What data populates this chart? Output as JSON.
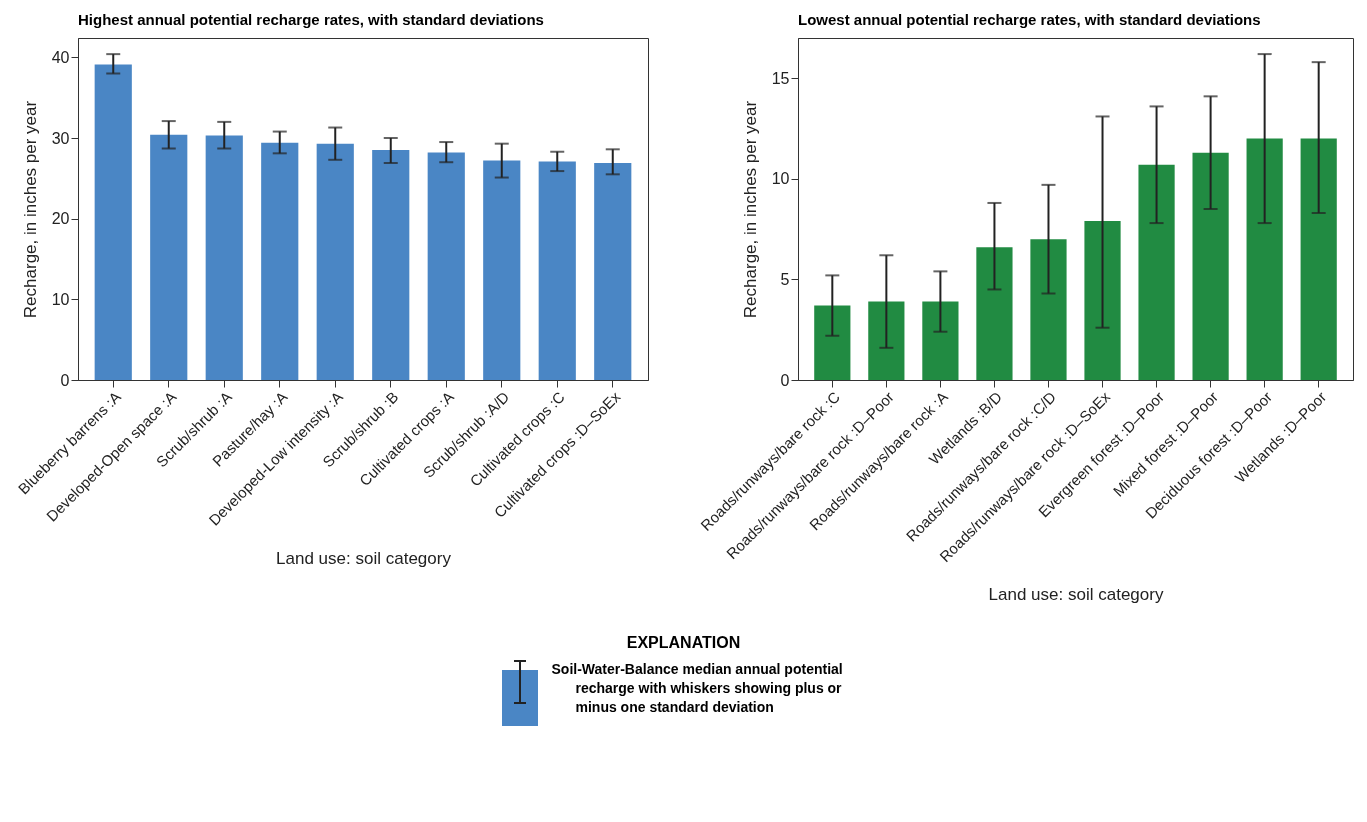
{
  "chart_data": [
    {
      "type": "bar",
      "title": "Highest annual potential recharge rates, with standard deviations",
      "xlabel": "Land use: soil category",
      "ylabel": "Recharge, in inches per year",
      "categories": [
        "Blueberry barrens :A",
        "Developed-Open space :A",
        "Scrub/shrub :A",
        "Pasture/hay :A",
        "Developed-Low intensity :A",
        "Scrub/shrub :B",
        "Cultivated crops :A",
        "Scrub/shrub :A/D",
        "Cultivated crops :C",
        "Cultivated crops :D–SoEx"
      ],
      "series": [
        {
          "name": "Soil-Water-Balance median annual potential recharge with whiskers showing plus or minus one standard deviation",
          "color": "#4a86c5",
          "values": [
            39.1,
            30.4,
            30.3,
            29.4,
            29.3,
            28.5,
            28.2,
            27.2,
            27.1,
            26.9
          ],
          "errors": [
            [
              38.0,
              40.4
            ],
            [
              28.7,
              32.1
            ],
            [
              28.7,
              32.0
            ],
            [
              28.1,
              30.8
            ],
            [
              27.3,
              31.3
            ],
            [
              26.9,
              30.0
            ],
            [
              27.0,
              29.5
            ],
            [
              25.1,
              29.3
            ],
            [
              25.9,
              28.3
            ],
            [
              25.5,
              28.6
            ]
          ]
        }
      ],
      "ylim": [
        0,
        42.4
      ],
      "yticks": [
        0,
        10,
        20,
        30,
        40
      ],
      "grid": false,
      "legend": "bottom",
      "legend_title": "EXPLANATION"
    },
    {
      "type": "bar",
      "title": "Lowest annual potential recharge rates, with standard deviations",
      "xlabel": "Land use: soil category",
      "ylabel": "Recharge, in inches per year",
      "categories": [
        "Roads/runways/bare rock :C",
        "Roads/runways/bare rock :D–Poor",
        "Roads/runways/bare rock :A",
        "Wetlands :B/D",
        "Roads/runways/bare rock :C/D",
        "Roads/runways/bare rock :D–SoEx",
        "Evergreen forest :D–Poor",
        "Mixed forest :D–Poor",
        "Deciduous forest :D–Poor",
        "Wetlands :D–Poor"
      ],
      "series": [
        {
          "color": "#218b42",
          "values": [
            3.7,
            3.9,
            3.9,
            6.6,
            7.0,
            7.9,
            10.7,
            11.3,
            12.0,
            12.0
          ],
          "errors": [
            [
              2.2,
              5.2
            ],
            [
              1.6,
              6.2
            ],
            [
              2.4,
              5.4
            ],
            [
              4.5,
              8.8
            ],
            [
              4.3,
              9.7
            ],
            [
              2.6,
              13.1
            ],
            [
              7.8,
              13.6
            ],
            [
              8.5,
              14.1
            ],
            [
              7.8,
              16.2
            ],
            [
              8.3,
              15.8
            ]
          ]
        }
      ],
      "ylim": [
        0,
        17
      ],
      "yticks": [
        0,
        5,
        10,
        15
      ],
      "grid": false
    }
  ]
}
